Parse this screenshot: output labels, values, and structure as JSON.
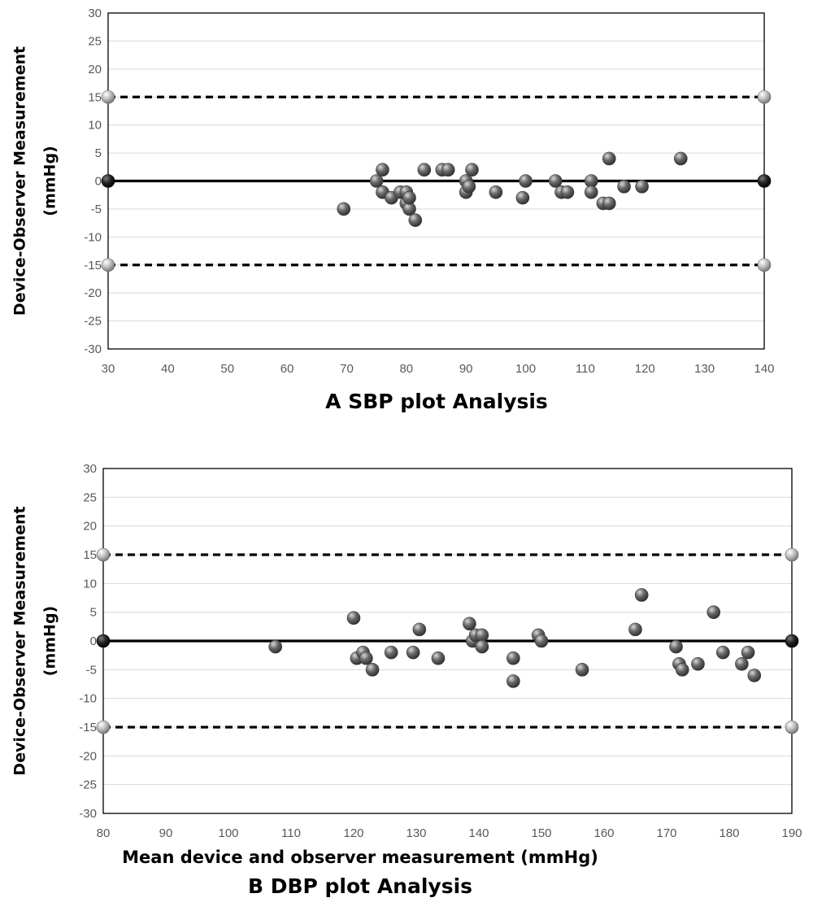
{
  "chart_data": [
    {
      "type": "scatter",
      "ylabel": [
        "Device-Observer Measurement",
        "(mmHg)"
      ],
      "caption": "A SBP plot Analysis",
      "xlim": [
        30,
        140
      ],
      "xticks": [
        30,
        40,
        50,
        60,
        70,
        80,
        90,
        100,
        110,
        120,
        130,
        140
      ],
      "ylim": [
        -30,
        30
      ],
      "yticks": [
        -30,
        -25,
        -20,
        -15,
        -10,
        -5,
        0,
        5,
        10,
        15,
        20,
        25,
        30
      ],
      "grid": true,
      "reference_lines": [
        {
          "value": 15,
          "style": "dashed"
        },
        {
          "value": 0,
          "style": "solid"
        },
        {
          "value": -15,
          "style": "dashed"
        }
      ],
      "points": [
        [
          69.5,
          -5
        ],
        [
          75,
          0
        ],
        [
          76,
          2
        ],
        [
          76,
          -2
        ],
        [
          77.5,
          -3
        ],
        [
          79,
          -2
        ],
        [
          80,
          -2
        ],
        [
          80,
          -4
        ],
        [
          80.5,
          -5
        ],
        [
          80.5,
          -3
        ],
        [
          81.5,
          -7
        ],
        [
          83,
          2
        ],
        [
          86,
          2
        ],
        [
          87,
          2
        ],
        [
          90,
          0
        ],
        [
          90,
          -2
        ],
        [
          90.5,
          -1
        ],
        [
          91,
          2
        ],
        [
          95,
          -2
        ],
        [
          99.5,
          -3
        ],
        [
          100,
          0
        ],
        [
          105,
          0
        ],
        [
          106,
          -2
        ],
        [
          107,
          -2
        ],
        [
          111,
          0
        ],
        [
          111,
          -2
        ],
        [
          113,
          -4
        ],
        [
          114,
          -4
        ],
        [
          114,
          4
        ],
        [
          116.5,
          -1
        ],
        [
          119.5,
          -1
        ],
        [
          126,
          4
        ]
      ]
    },
    {
      "type": "scatter",
      "ylabel": [
        "Device-Observer Measurement",
        "(mmHg)"
      ],
      "xlabel": "Mean device and observer measurement (mmHg)",
      "caption": "B DBP plot Analysis",
      "xlim": [
        80,
        190
      ],
      "xticks": [
        80,
        90,
        100,
        110,
        120,
        130,
        140,
        150,
        160,
        170,
        180,
        190
      ],
      "ylim": [
        -30,
        30
      ],
      "yticks": [
        -30,
        -25,
        -20,
        -15,
        -10,
        -5,
        0,
        5,
        10,
        15,
        20,
        25,
        30
      ],
      "grid": true,
      "reference_lines": [
        {
          "value": 15,
          "style": "dashed"
        },
        {
          "value": 0,
          "style": "solid"
        },
        {
          "value": -15,
          "style": "dashed"
        }
      ],
      "points": [
        [
          107.5,
          -1
        ],
        [
          120,
          4
        ],
        [
          120.5,
          -3
        ],
        [
          121.5,
          -2
        ],
        [
          122,
          -3
        ],
        [
          123,
          -5
        ],
        [
          126,
          -2
        ],
        [
          129.5,
          -2
        ],
        [
          130.5,
          2
        ],
        [
          133.5,
          -3
        ],
        [
          138.5,
          3
        ],
        [
          139,
          0
        ],
        [
          139.5,
          1
        ],
        [
          140.5,
          1
        ],
        [
          140.5,
          -1
        ],
        [
          145.5,
          -3
        ],
        [
          145.5,
          -7
        ],
        [
          149.5,
          1
        ],
        [
          150,
          0
        ],
        [
          156.5,
          -5
        ],
        [
          165,
          2
        ],
        [
          166,
          8
        ],
        [
          171.5,
          -1
        ],
        [
          172,
          -4
        ],
        [
          172.5,
          -5
        ],
        [
          175,
          -4
        ],
        [
          177.5,
          5
        ],
        [
          179,
          -2
        ],
        [
          182,
          -4
        ],
        [
          183,
          -2
        ],
        [
          184,
          -6
        ]
      ]
    }
  ]
}
